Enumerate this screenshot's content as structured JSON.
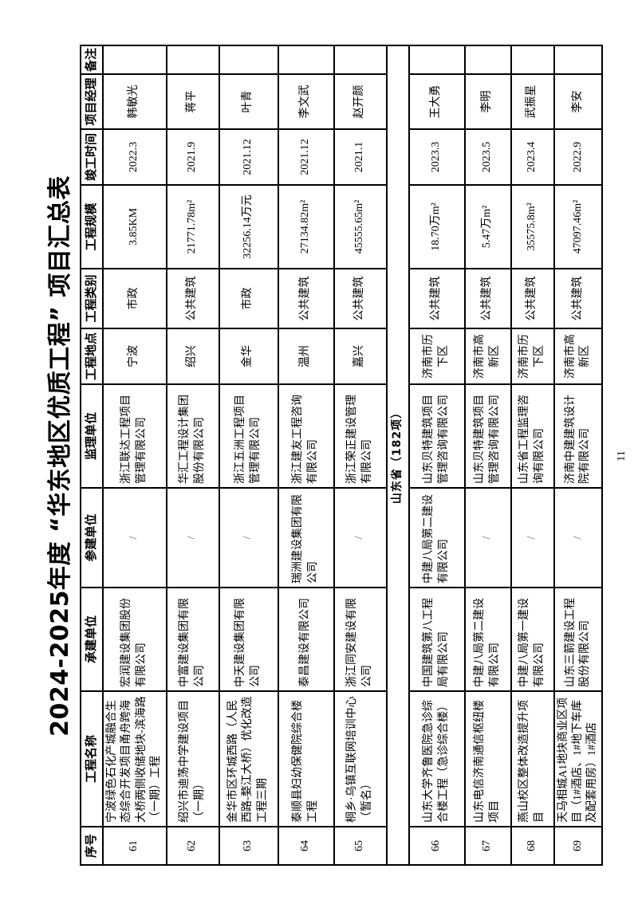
{
  "page": {
    "title": "2024-2025年度 “华东地区优质工程” 项目汇总表",
    "page_number": "11"
  },
  "table": {
    "headers": [
      "序号",
      "工程名称",
      "承建单位",
      "参建单位",
      "监理单位",
      "工程地点",
      "工程类别",
      "工程规模",
      "竣工时间",
      "项目经理",
      "备注"
    ],
    "section_header": "山东省（182项）",
    "rows_zhejiang": [
      {
        "no": "61",
        "name": "宁波绿色石化产城融合生态综合开发项目甬舟跨海大桥两侧收储地块-滨海路（一期）工程",
        "contractor": "宏润建设集团股份有限公司",
        "participant": "/",
        "supervisor": "浙江联达工程项目管理有限公司",
        "location": "宁波",
        "category": "市政",
        "scale": "3.85KM",
        "completed": "2022.3",
        "manager": "韩敏光",
        "remark": ""
      },
      {
        "no": "62",
        "name": "绍兴市迪荡中学建设项目（一期）",
        "contractor": "中富建设集团有限公司",
        "participant": "/",
        "supervisor": "华汇工程设计集团股份有限公司",
        "location": "绍兴",
        "category": "公共建筑",
        "scale": "21771.78m²",
        "completed": "2021.9",
        "manager": "蒋平",
        "remark": ""
      },
      {
        "no": "63",
        "name": "金华市区环城西路（人民西路-婺江大桥）优化改造工程三期",
        "contractor": "中天建设集团有限公司",
        "participant": "/",
        "supervisor": "浙江五洲工程项目管理有限公司",
        "location": "金华",
        "category": "市政",
        "scale": "32256.14万元",
        "completed": "2021.12",
        "manager": "叶青",
        "remark": ""
      },
      {
        "no": "64",
        "name": "泰顺县妇幼保健院综合楼工程",
        "contractor": "泰昌建设有限公司",
        "participant": "瑞洲建设集团有限公司",
        "supervisor": "浙江建友工程咨询有限公司",
        "location": "温州",
        "category": "公共建筑",
        "scale": "27134.82m²",
        "completed": "2021.12",
        "manager": "李文武",
        "remark": ""
      },
      {
        "no": "65",
        "name": "桐乡·乌镇互联网培训中心（暂名）",
        "contractor": "浙江同安建设有限公司",
        "participant": "/",
        "supervisor": "浙江荣正建设管理有限公司",
        "location": "嘉兴",
        "category": "公共建筑",
        "scale": "45555.65m²",
        "completed": "2021.1",
        "manager": "赵开颜",
        "remark": ""
      }
    ],
    "rows_shandong": [
      {
        "no": "66",
        "name": "山东大学齐鲁医院急诊综合楼工程（急诊综合楼）",
        "contractor": "中国建筑第八工程局有限公司",
        "participant": "中建八局第二建设有限公司",
        "supervisor": "山东贝特建筑项目管理咨询有限公司",
        "location": "济南市历下区",
        "category": "公共建筑",
        "scale": "18.70万m²",
        "completed": "2023.3",
        "manager": "王大勇",
        "remark": ""
      },
      {
        "no": "67",
        "name": "山东电信济南通信枢纽楼项目",
        "contractor": "中建八局第二建设有限公司",
        "participant": "/",
        "supervisor": "山东贝特建筑项目管理咨询有限公司",
        "location": "济南市高新区",
        "category": "公共建筑",
        "scale": "5.47万m²",
        "completed": "2023.5",
        "manager": "李明",
        "remark": ""
      },
      {
        "no": "68",
        "name": "燕山校区整体改造提升项目",
        "contractor": "中建八局第一建设有限公司",
        "participant": "/",
        "supervisor": "山东省工程监理咨询有限公司",
        "location": "济南市历下区",
        "category": "公共建筑",
        "scale": "35575.8m²",
        "completed": "2023.4",
        "manager": "武振星",
        "remark": ""
      },
      {
        "no": "69",
        "name": "天马相城A1地块商业区项目（1#酒店、1#地下车库及配套用房）1#酒店",
        "contractor": "山东三箭建设工程股份有限公司",
        "participant": "/",
        "supervisor": "济南中建建筑设计院有限公司",
        "location": "济南市高新区",
        "category": "公共建筑",
        "scale": "47097.46m²",
        "completed": "2022.9",
        "manager": "李安",
        "remark": ""
      }
    ]
  }
}
